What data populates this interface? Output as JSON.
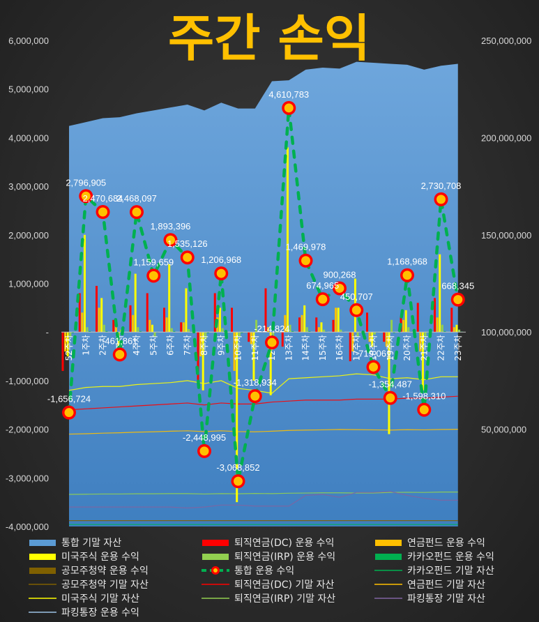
{
  "chart_data": {
    "type": "bar",
    "title": "주간 손익",
    "categories": [
      "52주차",
      "1주차",
      "2주차",
      "3주차",
      "4주차",
      "5주차",
      "6주차",
      "7주차",
      "8주차",
      "9주차",
      "10주차",
      "11주차",
      "12주차",
      "13주차",
      "14주차",
      "15주차",
      "16주차",
      "17주차",
      "18주차",
      "19주차",
      "20주차",
      "21주차",
      "22주차",
      "23주차"
    ],
    "y_left": {
      "ylim": [
        -4000000,
        6000000
      ],
      "ticks": [
        "-4,000,000",
        "-3,000,000",
        "-2,000,000",
        "-1,000,000",
        "-",
        "1,000,000",
        "2,000,000",
        "3,000,000",
        "4,000,000",
        "5,000,000",
        "6,000,000"
      ]
    },
    "y_right": {
      "ylim": [
        0,
        250000000
      ],
      "ticks": [
        "",
        "50,000,000",
        "100,000,000",
        "150,000,000",
        "200,000,000",
        "250,000,000"
      ]
    },
    "series": [
      {
        "name": "통합 기말 자산",
        "kind": "area",
        "axis": "right",
        "color": "#5b9bd5",
        "values": [
          206000000,
          208000000,
          210000000,
          210500000,
          212500000,
          214000000,
          215500000,
          217000000,
          214000000,
          218000000,
          215000000,
          215000000,
          229000000,
          229500000,
          235000000,
          236000000,
          235500000,
          239000000,
          238500000,
          238000000,
          237500000,
          235000000,
          237000000,
          238000000
        ]
      },
      {
        "name": "퇴직연금(DC) 운용 수익",
        "kind": "bar",
        "axis": "left",
        "color": "#ff0000",
        "values": [
          -800000,
          800000,
          950000,
          250000,
          550000,
          800000,
          500000,
          200000,
          -1000000,
          800000,
          500000,
          -200000,
          900000,
          -300000,
          300000,
          300000,
          250000,
          -600000,
          400000,
          -200000,
          300000,
          600000,
          700000,
          500000
        ]
      },
      {
        "name": "연금펀드 운용 수익",
        "kind": "bar",
        "axis": "left",
        "color": "#ffc000",
        "values": [
          -400000,
          400000,
          500000,
          150000,
          350000,
          250000,
          300000,
          200000,
          -500000,
          300000,
          -800000,
          -250000,
          100000,
          350000,
          350000,
          100000,
          500000,
          -400000,
          -200000,
          -300000,
          250000,
          -400000,
          300000,
          100000
        ]
      },
      {
        "name": "미국주식 운용 수익",
        "kind": "bar",
        "axis": "left",
        "color": "#ffff00",
        "values": [
          -500000,
          2000000,
          700000,
          -300000,
          1200000,
          150000,
          1400000,
          900000,
          -1200000,
          500000,
          -3500000,
          -1000000,
          -1300000,
          3800000,
          550000,
          200000,
          500000,
          1100000,
          -300000,
          -2100000,
          450000,
          -1200000,
          1600000,
          150000
        ]
      },
      {
        "name": "퇴직연금(IRP) 운용 수익",
        "kind": "bar",
        "axis": "left",
        "color": "#92d050",
        "values": [
          -100000,
          100000,
          150000,
          50000,
          100000,
          -100000,
          80000,
          60000,
          -150000,
          80000,
          -100000,
          250000,
          -80000,
          150000,
          100000,
          50000,
          50000,
          -100000,
          -50000,
          250000,
          100000,
          -100000,
          150000,
          50000
        ]
      },
      {
        "name": "카카오펀드 운용 수익",
        "kind": "bar",
        "axis": "left",
        "color": "#00b050",
        "values": [
          -20000,
          20000,
          20000,
          10000,
          20000,
          -10000,
          20000,
          10000,
          -20000,
          20000,
          -20000,
          -10000,
          -10000,
          20000,
          20000,
          10000,
          10000,
          -10000,
          -10000,
          -20000,
          10000,
          -10000,
          20000,
          10000
        ]
      },
      {
        "name": "공모주청약 운용 수익",
        "kind": "bar",
        "axis": "left",
        "color": "#7f6000",
        "values": [
          0,
          0,
          0,
          0,
          0,
          0,
          0,
          0,
          0,
          0,
          0,
          0,
          0,
          0,
          0,
          0,
          0,
          0,
          0,
          0,
          0,
          0,
          0,
          0
        ]
      },
      {
        "name": "통합 운용 수익",
        "kind": "line-marker",
        "axis": "left",
        "color": "#00b050",
        "values": [
          -1656724,
          2796905,
          2470684,
          -461861,
          2468097,
          1159659,
          1893396,
          1535126,
          -2448995,
          1206968,
          -3068852,
          -1318934,
          -214824,
          4610783,
          1469978,
          674965,
          900268,
          450707,
          -719061,
          -1354487,
          1168968,
          -1598310,
          2730708,
          668345
        ],
        "labels": [
          "-1,656,724",
          "2,796,905",
          "2,470,684",
          "-461,861",
          "2,468,097",
          "1,159,659",
          "1,893,396",
          "1,535,126",
          "-2,448,995",
          "1,206,968",
          "-3,068,852",
          "-1,318,934",
          "-214,824",
          "4,610,783",
          "1,469,978",
          "674,965",
          "900,268",
          "450,707",
          "-719,061",
          "-1,354,487",
          "1,168,968",
          "-1,598,310",
          "2,730,708",
          "668,345"
        ]
      },
      {
        "name": "카카오펀드 기말 자산",
        "kind": "line",
        "axis": "right",
        "color": "#00b050",
        "values": [
          1000000,
          1000000,
          1000000,
          1000000,
          1000000,
          1000000,
          1000000,
          1000000,
          1000000,
          1000000,
          1000000,
          1000000,
          1000000,
          1000000,
          1000000,
          1000000,
          1000000,
          1000000,
          1000000,
          1000000,
          1000000,
          1000000,
          1000000,
          1000000
        ]
      },
      {
        "name": "공모주청약 기말 자산",
        "kind": "line",
        "axis": "right",
        "color": "#7f6000",
        "values": [
          3000000,
          3000000,
          3000000,
          3000000,
          3000000,
          3000000,
          3000000,
          3000000,
          3000000,
          3000000,
          3000000,
          3000000,
          3000000,
          3000000,
          3000000,
          3000000,
          3000000,
          3000000,
          3000000,
          3000000,
          3000000,
          3000000,
          3000000,
          3000000
        ]
      },
      {
        "name": "퇴직연금(DC) 기말 자산",
        "kind": "line",
        "axis": "right",
        "color": "#ff0000",
        "values": [
          60000000,
          60500000,
          61000000,
          61500000,
          62000000,
          62500000,
          63000000,
          63500000,
          62500000,
          63500000,
          63000000,
          63000000,
          64000000,
          64500000,
          65000000,
          65000000,
          65000000,
          65500000,
          65500000,
          65500000,
          66000000,
          66000000,
          66500000,
          67000000
        ]
      },
      {
        "name": "연금펀드 기말 자산",
        "kind": "line",
        "axis": "right",
        "color": "#ffc000",
        "values": [
          47500000,
          47700000,
          48000000,
          48200000,
          48500000,
          48700000,
          49000000,
          49200000,
          48800000,
          49200000,
          48800000,
          48700000,
          49000000,
          49400000,
          49600000,
          49700000,
          49900000,
          49800000,
          49700000,
          49600000,
          49800000,
          49700000,
          49900000,
          50000000
        ]
      },
      {
        "name": "미국주식 기말 자산",
        "kind": "line",
        "axis": "right",
        "color": "#ffff00",
        "values": [
          70000000,
          71500000,
          72000000,
          72000000,
          73000000,
          73500000,
          74000000,
          75000000,
          73500000,
          75000000,
          71000000,
          70000000,
          68500000,
          76000000,
          76500000,
          77000000,
          77500000,
          78500000,
          78000000,
          76000000,
          76500000,
          75500000,
          77000000,
          77000000
        ]
      },
      {
        "name": "퇴직연금(IRP) 기말 자산",
        "kind": "line",
        "axis": "right",
        "color": "#92d050",
        "values": [
          16500000,
          16600000,
          16700000,
          16700000,
          16800000,
          16800000,
          16900000,
          16900000,
          16700000,
          16900000,
          16800000,
          17000000,
          16900000,
          17100000,
          17200000,
          17300000,
          17300000,
          17200000,
          17200000,
          17500000,
          17600000,
          17500000,
          17700000,
          17700000
        ]
      },
      {
        "name": "파킹통장 기말 자산",
        "kind": "line",
        "axis": "right",
        "color": "#8064a2",
        "values": [
          10000000,
          10000000,
          10000000,
          10000000,
          10000000,
          10000000,
          10000000,
          9500000,
          10000000,
          11000000,
          11000000,
          10500000,
          10500000,
          10500000,
          16000000,
          16500000,
          15000000,
          17500000,
          17500000,
          18000000,
          16000000,
          14500000,
          13500000,
          13500000
        ]
      },
      {
        "name": "파킹통장 운용 수익",
        "kind": "line",
        "axis": "left",
        "color": "#9dc3e6",
        "values": [
          0,
          0,
          0,
          0,
          0,
          0,
          0,
          0,
          0,
          0,
          0,
          0,
          0,
          0,
          0,
          0,
          0,
          0,
          0,
          0,
          0,
          0,
          0,
          0
        ]
      }
    ],
    "legend_position": "bottom",
    "grid": false
  },
  "legend": [
    {
      "name": "통합 기말 자산",
      "key": "area",
      "color": "#5b9bd5"
    },
    {
      "name": "퇴직연금(DC) 운용 수익",
      "key": "bar",
      "color": "#ff0000"
    },
    {
      "name": "연금펀드 운용 수익",
      "key": "bar",
      "color": "#ffc000"
    },
    {
      "name": "미국주식 운용 수익",
      "key": "bar",
      "color": "#ffff00"
    },
    {
      "name": "퇴직연금(IRP) 운용 수익",
      "key": "bar",
      "color": "#92d050"
    },
    {
      "name": "카카오펀드 운용 수익",
      "key": "bar",
      "color": "#00b050"
    },
    {
      "name": "공모주청약 운용 수익",
      "key": "bar",
      "color": "#7f6000"
    },
    {
      "name": "통합 운용 수익",
      "key": "marker",
      "color": "#00b050"
    },
    {
      "name": "카카오펀드 기말 자산",
      "key": "line",
      "color": "#00b050"
    },
    {
      "name": "공모주청약 기말 자산",
      "key": "line",
      "color": "#7f6000"
    },
    {
      "name": "퇴직연금(DC) 기말 자산",
      "key": "line",
      "color": "#ff0000"
    },
    {
      "name": "연금펀드 기말 자산",
      "key": "line",
      "color": "#ffc000"
    },
    {
      "name": "미국주식 기말 자산",
      "key": "line",
      "color": "#ffff00"
    },
    {
      "name": "퇴직연금(IRP) 기말 자산",
      "key": "line",
      "color": "#92d050"
    },
    {
      "name": "파킹통장 기말 자산",
      "key": "line",
      "color": "#8064a2"
    },
    {
      "name": "파킹통장 운용 수익",
      "key": "line",
      "color": "#9dc3e6"
    }
  ]
}
